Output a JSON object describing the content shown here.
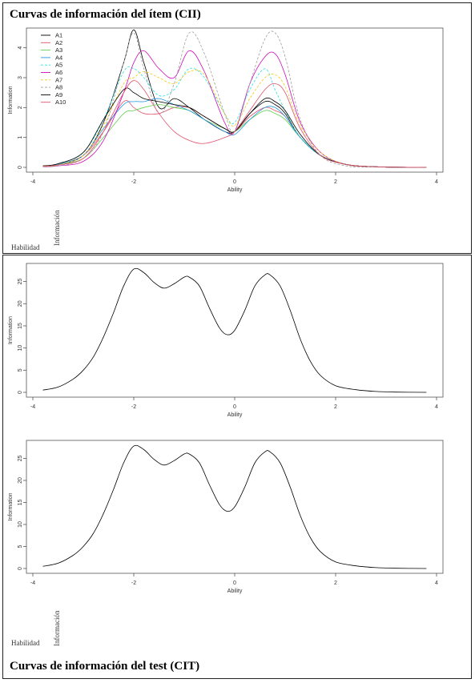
{
  "top_panel": {
    "title": "Curvas de información del ítem (CII)",
    "habilidad": "Habilidad",
    "informacion": "Información"
  },
  "bottom_panel": {
    "title": "Curvas de información del test (CIT)",
    "habilidad": "Habilidad",
    "informacion": "Información"
  },
  "colors": {
    "A1": "#000000",
    "A2": "#df536b",
    "A3": "#61d04f",
    "A4": "#2297e6",
    "A5": "#28e2e5",
    "A6": "#cd0bbc",
    "A7": "#f5c710",
    "A8": "#9e9e9e",
    "A9": "#000000",
    "A10": "#df536b"
  },
  "chart_data": [
    {
      "type": "line",
      "xlabel": "Ability",
      "ylabel": "Information",
      "xlim": [
        -4,
        4
      ],
      "ylim": [
        0,
        4.5
      ],
      "xticks": [
        -4,
        -2,
        0,
        2,
        4
      ],
      "yticks": [
        0,
        1,
        2,
        3,
        4
      ],
      "legend_position": "top-left",
      "x": [
        -3.8,
        -3.5,
        -3.0,
        -2.6,
        -2.2,
        -2.0,
        -1.8,
        -1.5,
        -1.2,
        -0.9,
        -0.6,
        -0.2,
        0.0,
        0.3,
        0.6,
        0.8,
        1.0,
        1.3,
        1.7,
        2.2,
        2.8,
        3.8
      ],
      "series": [
        {
          "name": "A1",
          "values": [
            0.05,
            0.1,
            0.4,
            1.5,
            3.5,
            4.6,
            3.5,
            2.0,
            2.3,
            2.0,
            1.6,
            1.2,
            1.2,
            1.8,
            2.2,
            2.1,
            1.8,
            1.0,
            0.4,
            0.1,
            0.02,
            0.0
          ]
        },
        {
          "name": "A2",
          "values": [
            0.05,
            0.1,
            0.4,
            1.2,
            2.2,
            2.0,
            1.8,
            1.8,
            2.0,
            2.0,
            1.7,
            1.3,
            1.2,
            1.7,
            2.0,
            1.9,
            1.7,
            1.0,
            0.4,
            0.1,
            0.02,
            0.0
          ]
        },
        {
          "name": "A3",
          "values": [
            0.03,
            0.08,
            0.3,
            1.0,
            1.8,
            1.9,
            2.0,
            2.1,
            2.0,
            1.9,
            1.6,
            1.3,
            1.2,
            1.6,
            1.9,
            1.8,
            1.6,
            1.0,
            0.4,
            0.1,
            0.02,
            0.0
          ]
        },
        {
          "name": "A4",
          "values": [
            0.05,
            0.1,
            0.4,
            1.3,
            2.1,
            2.2,
            2.2,
            2.3,
            2.1,
            1.9,
            1.6,
            1.2,
            1.1,
            1.6,
            2.0,
            2.0,
            1.7,
            1.0,
            0.4,
            0.1,
            0.02,
            0.0
          ]
        },
        {
          "name": "A5",
          "values": [
            0.04,
            0.1,
            0.5,
            1.6,
            3.2,
            3.3,
            3.0,
            2.4,
            2.6,
            3.3,
            3.0,
            1.8,
            1.5,
            2.6,
            3.3,
            2.6,
            1.9,
            1.0,
            0.4,
            0.1,
            0.02,
            0.0
          ]
        },
        {
          "name": "A6",
          "values": [
            0.02,
            0.05,
            0.2,
            0.9,
            2.5,
            3.5,
            3.9,
            3.3,
            3.0,
            3.9,
            3.2,
            1.5,
            1.2,
            2.8,
            3.7,
            3.8,
            3.1,
            1.5,
            0.5,
            0.1,
            0.02,
            0.0
          ]
        },
        {
          "name": "A7",
          "values": [
            0.03,
            0.08,
            0.4,
            1.4,
            2.8,
            3.0,
            3.2,
            3.0,
            2.8,
            3.2,
            3.1,
            1.8,
            1.4,
            2.3,
            3.0,
            3.1,
            2.7,
            1.4,
            0.5,
            0.1,
            0.02,
            0.0
          ]
        },
        {
          "name": "A8",
          "values": [
            0.02,
            0.05,
            0.3,
            1.2,
            3.5,
            4.5,
            3.3,
            1.8,
            2.8,
            4.5,
            3.8,
            1.8,
            1.2,
            2.8,
            4.3,
            4.5,
            3.7,
            1.6,
            0.4,
            0.05,
            0.01,
            0.0
          ]
        },
        {
          "name": "A9",
          "values": [
            0.05,
            0.12,
            0.5,
            1.6,
            2.6,
            2.5,
            2.3,
            2.2,
            2.1,
            2.0,
            1.7,
            1.3,
            1.2,
            1.8,
            2.3,
            2.2,
            1.9,
            1.1,
            0.4,
            0.1,
            0.02,
            0.0
          ]
        },
        {
          "name": "A10",
          "values": [
            0.04,
            0.08,
            0.3,
            1.2,
            2.5,
            2.9,
            2.6,
            1.8,
            1.2,
            0.9,
            0.8,
            1.0,
            1.2,
            1.9,
            2.6,
            2.8,
            2.5,
            1.3,
            0.4,
            0.1,
            0.02,
            0.0
          ]
        }
      ]
    },
    {
      "type": "line",
      "xlabel": "Ability",
      "ylabel": "Information",
      "xlim": [
        -4,
        4
      ],
      "ylim": [
        0,
        28
      ],
      "xticks": [
        -4,
        -2,
        0,
        2,
        4
      ],
      "yticks": [
        0,
        5,
        10,
        15,
        20,
        25
      ],
      "x": [
        -3.8,
        -3.5,
        -3.2,
        -3.0,
        -2.8,
        -2.6,
        -2.4,
        -2.2,
        -2.0,
        -1.8,
        -1.6,
        -1.4,
        -1.2,
        -1.0,
        -0.9,
        -0.7,
        -0.5,
        -0.3,
        -0.15,
        0.0,
        0.2,
        0.4,
        0.6,
        0.7,
        0.9,
        1.1,
        1.3,
        1.5,
        1.7,
        2.0,
        2.4,
        2.8,
        3.2,
        3.8
      ],
      "series": [
        {
          "values": [
            0.5,
            1.2,
            3.0,
            5.0,
            8.0,
            12.5,
            18.0,
            24.0,
            27.8,
            27.0,
            24.8,
            23.5,
            24.5,
            26.0,
            26.0,
            24.0,
            19.0,
            14.5,
            13.0,
            14.0,
            18.5,
            24.0,
            26.5,
            26.5,
            24.0,
            18.5,
            12.0,
            7.0,
            3.8,
            1.5,
            0.6,
            0.2,
            0.05,
            0.0
          ]
        }
      ]
    },
    {
      "type": "line",
      "xlabel": "Ability",
      "ylabel": "Information",
      "xlim": [
        -4,
        4
      ],
      "ylim": [
        0,
        28
      ],
      "xticks": [
        -4,
        -2,
        0,
        2,
        4
      ],
      "yticks": [
        0,
        5,
        10,
        15,
        20,
        25
      ],
      "x": [
        -3.8,
        -3.5,
        -3.2,
        -3.0,
        -2.8,
        -2.6,
        -2.4,
        -2.2,
        -2.0,
        -1.8,
        -1.6,
        -1.4,
        -1.2,
        -1.0,
        -0.9,
        -0.7,
        -0.5,
        -0.3,
        -0.15,
        0.0,
        0.2,
        0.4,
        0.6,
        0.7,
        0.9,
        1.1,
        1.3,
        1.5,
        1.7,
        2.0,
        2.4,
        2.8,
        3.2,
        3.8
      ],
      "series": [
        {
          "values": [
            0.5,
            1.2,
            3.0,
            5.0,
            8.0,
            12.5,
            18.0,
            24.0,
            27.8,
            27.0,
            24.8,
            23.5,
            24.5,
            26.0,
            26.0,
            24.0,
            19.0,
            14.5,
            13.0,
            14.0,
            18.5,
            24.0,
            26.5,
            26.5,
            24.0,
            18.5,
            12.0,
            7.0,
            3.8,
            1.5,
            0.6,
            0.2,
            0.05,
            0.0
          ]
        }
      ]
    }
  ]
}
